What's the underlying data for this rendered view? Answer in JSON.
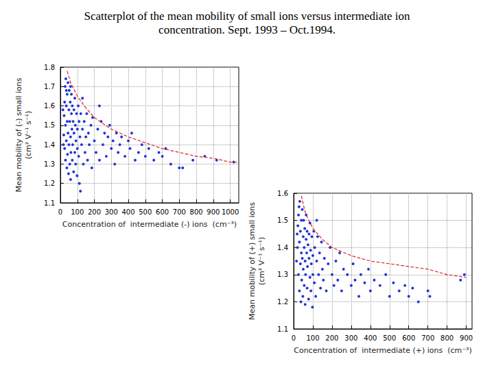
{
  "title": "Scatterplot of the mean mobility of small ions versus intermediate ion concentration. Sept. 1993 – Oct.1994.",
  "chart_data": [
    {
      "type": "scatter",
      "xlabel": "Concentration of  intermediate (-) ions  (cm⁻³)",
      "ylabel": [
        "Mean mobility of (-) small ions",
        "(cm² V⁻¹ s⁻¹)"
      ],
      "xlim": [
        0,
        1050
      ],
      "xticks": [
        0,
        100,
        200,
        300,
        400,
        500,
        600,
        700,
        800,
        900,
        1000
      ],
      "ylim": [
        1.1,
        1.8
      ],
      "yticks": [
        1.1,
        1.2,
        1.3,
        1.4,
        1.5,
        1.6,
        1.7,
        1.8
      ],
      "grid": true,
      "series": [
        {
          "type": "scatter",
          "color": "#1f35d8",
          "marker": "circle",
          "x": [
            20,
            22,
            25,
            25,
            28,
            30,
            30,
            32,
            35,
            35,
            38,
            40,
            40,
            42,
            45,
            45,
            48,
            50,
            50,
            52,
            55,
            55,
            58,
            60,
            60,
            62,
            65,
            65,
            68,
            70,
            70,
            72,
            75,
            78,
            80,
            80,
            85,
            85,
            88,
            90,
            92,
            95,
            98,
            100,
            100,
            105,
            108,
            110,
            112,
            115,
            118,
            120,
            125,
            130,
            135,
            140,
            145,
            150,
            155,
            160,
            165,
            170,
            180,
            185,
            190,
            200,
            210,
            220,
            230,
            240,
            250,
            260,
            270,
            280,
            290,
            300,
            310,
            320,
            330,
            340,
            350,
            360,
            380,
            400,
            410,
            420,
            440,
            460,
            480,
            500,
            520,
            550,
            580,
            600,
            620,
            650,
            700,
            720,
            780,
            850,
            920,
            1020,
            230,
            130,
            35,
            60,
            15,
            18
          ],
          "values": [
            1.45,
            1.55,
            1.62,
            1.38,
            1.7,
            1.5,
            1.32,
            1.74,
            1.6,
            1.42,
            1.28,
            1.66,
            1.52,
            1.35,
            1.72,
            1.46,
            1.25,
            1.58,
            1.4,
            1.68,
            1.3,
            1.52,
            1.62,
            1.44,
            1.22,
            1.36,
            1.56,
            1.66,
            1.48,
            1.32,
            1.6,
            1.4,
            1.52,
            1.26,
            1.46,
            1.58,
            1.36,
            1.64,
            1.5,
            1.3,
            1.42,
            1.56,
            1.24,
            1.48,
            1.38,
            1.6,
            1.34,
            1.52,
            1.2,
            1.44,
            1.16,
            1.56,
            1.4,
            1.48,
            1.3,
            1.52,
            1.36,
            1.44,
            1.56,
            1.32,
            1.46,
            1.4,
            1.5,
            1.28,
            1.54,
            1.42,
            1.36,
            1.48,
            1.32,
            1.52,
            1.4,
            1.46,
            1.34,
            1.44,
            1.5,
            1.38,
            1.42,
            1.3,
            1.46,
            1.36,
            1.4,
            1.44,
            1.34,
            1.42,
            1.38,
            1.46,
            1.32,
            1.36,
            1.4,
            1.34,
            1.38,
            1.32,
            1.36,
            1.34,
            1.38,
            1.3,
            1.28,
            1.28,
            1.32,
            1.34,
            1.32,
            1.31,
            1.6,
            1.64,
            1.68,
            1.7,
            1.58,
            1.4
          ]
        },
        {
          "type": "line",
          "color": "#e02020",
          "line_style": "dashed",
          "x": [
            40,
            60,
            100,
            150,
            200,
            300,
            400,
            500,
            600,
            700,
            800,
            900,
            1000,
            1040
          ],
          "values": [
            1.78,
            1.72,
            1.65,
            1.59,
            1.54,
            1.48,
            1.44,
            1.41,
            1.38,
            1.36,
            1.34,
            1.33,
            1.31,
            1.31
          ]
        }
      ]
    },
    {
      "type": "scatter",
      "xlabel": "Concentration of  intermediate (+) ions  (cm⁻³)",
      "ylabel": [
        "Mean mobility of (+) small ions",
        "(cm² V⁻¹ s⁻¹)"
      ],
      "xlim": [
        0,
        930
      ],
      "xticks": [
        0,
        100,
        200,
        300,
        400,
        500,
        600,
        700,
        800,
        900
      ],
      "ylim": [
        1.1,
        1.6
      ],
      "yticks": [
        1.1,
        1.2,
        1.3,
        1.4,
        1.5,
        1.6
      ],
      "grid": true,
      "series": [
        {
          "type": "scatter",
          "color": "#1f35d8",
          "marker": "circle",
          "x": [
            20,
            22,
            25,
            25,
            28,
            30,
            30,
            32,
            35,
            35,
            38,
            40,
            40,
            42,
            45,
            45,
            48,
            50,
            50,
            52,
            55,
            55,
            58,
            60,
            60,
            62,
            65,
            65,
            68,
            70,
            70,
            72,
            75,
            78,
            80,
            80,
            85,
            85,
            88,
            90,
            92,
            95,
            98,
            100,
            100,
            105,
            108,
            110,
            115,
            120,
            125,
            130,
            135,
            140,
            145,
            150,
            155,
            160,
            170,
            180,
            190,
            200,
            210,
            220,
            230,
            240,
            250,
            260,
            280,
            300,
            310,
            320,
            340,
            350,
            370,
            390,
            400,
            420,
            450,
            480,
            500,
            520,
            550,
            580,
            600,
            620,
            650,
            700,
            710,
            870,
            890,
            15,
            18,
            120
          ],
          "values": [
            1.4,
            1.48,
            1.52,
            1.3,
            1.55,
            1.42,
            1.24,
            1.57,
            1.46,
            1.34,
            1.2,
            1.5,
            1.38,
            1.28,
            1.54,
            1.36,
            1.22,
            1.44,
            1.32,
            1.5,
            1.26,
            1.4,
            1.47,
            1.35,
            1.19,
            1.3,
            1.43,
            1.52,
            1.38,
            1.25,
            1.46,
            1.33,
            1.41,
            1.21,
            1.36,
            1.45,
            1.29,
            1.49,
            1.39,
            1.24,
            1.34,
            1.44,
            1.18,
            1.37,
            1.3,
            1.46,
            1.27,
            1.4,
            1.22,
            1.35,
            1.44,
            1.3,
            1.38,
            1.25,
            1.42,
            1.32,
            1.28,
            1.36,
            1.24,
            1.34,
            1.4,
            1.3,
            1.26,
            1.35,
            1.28,
            1.38,
            1.24,
            1.32,
            1.3,
            1.26,
            1.34,
            1.28,
            1.22,
            1.3,
            1.27,
            1.32,
            1.24,
            1.28,
            1.26,
            1.3,
            1.22,
            1.27,
            1.24,
            1.26,
            1.22,
            1.25,
            1.2,
            1.24,
            1.22,
            1.28,
            1.3,
            1.35,
            1.45,
            1.5
          ]
        },
        {
          "type": "line",
          "color": "#e02020",
          "line_style": "dashed",
          "x": [
            40,
            60,
            100,
            150,
            200,
            300,
            400,
            500,
            600,
            700,
            800,
            900
          ],
          "values": [
            1.59,
            1.53,
            1.47,
            1.43,
            1.4,
            1.37,
            1.35,
            1.34,
            1.33,
            1.32,
            1.3,
            1.29
          ]
        }
      ]
    }
  ]
}
